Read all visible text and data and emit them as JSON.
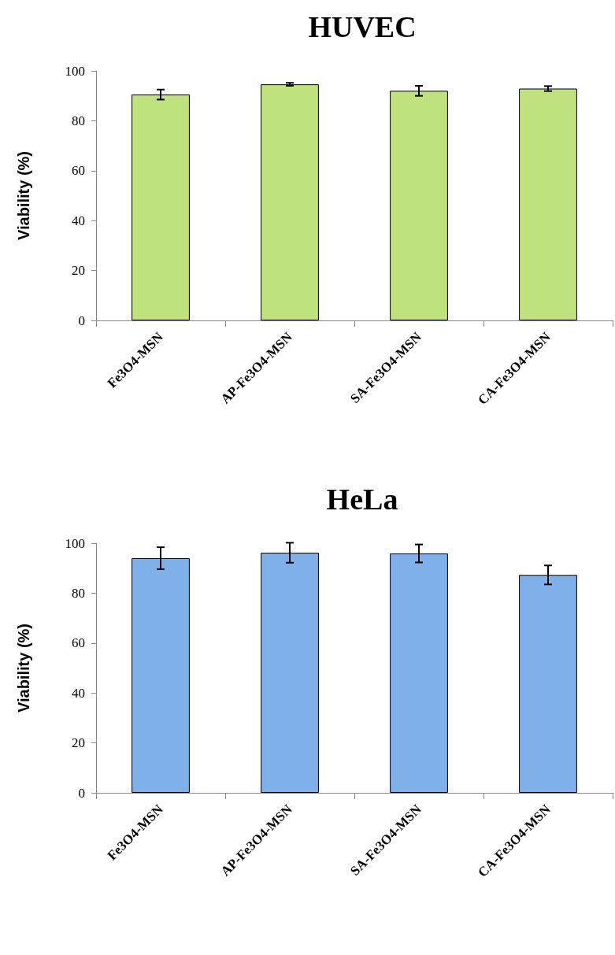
{
  "chart_data": [
    {
      "type": "bar",
      "title": "HUVEC",
      "ylabel": "Viability (%)",
      "categories": [
        "Fe3O4-MSN",
        "AP-Fe3O4-MSN",
        "SA-Fe3O4-MSN",
        "CA-Fe3O4-MSN"
      ],
      "values": [
        90.5,
        94.6,
        92,
        92.9
      ],
      "errors": [
        2,
        0.6,
        2,
        1
      ],
      "color": "#bfe27f",
      "ylim": [
        0,
        100
      ],
      "yticks": [
        0,
        20,
        40,
        60,
        80,
        100
      ],
      "grid": false
    },
    {
      "type": "bar",
      "title": "HeLa",
      "ylabel": "Viability (%)",
      "categories": [
        "Fe3O4-MSN",
        "AP-Fe3O4-MSN",
        "SA-Fe3O4-MSN",
        "CA-Fe3O4-MSN"
      ],
      "values": [
        94,
        96.2,
        95.9,
        87.3
      ],
      "errors": [
        4.4,
        4,
        3.6,
        3.8
      ],
      "color": "#7fb0ea",
      "ylim": [
        0,
        100
      ],
      "yticks": [
        0,
        20,
        40,
        60,
        80,
        100
      ],
      "grid": false
    }
  ]
}
